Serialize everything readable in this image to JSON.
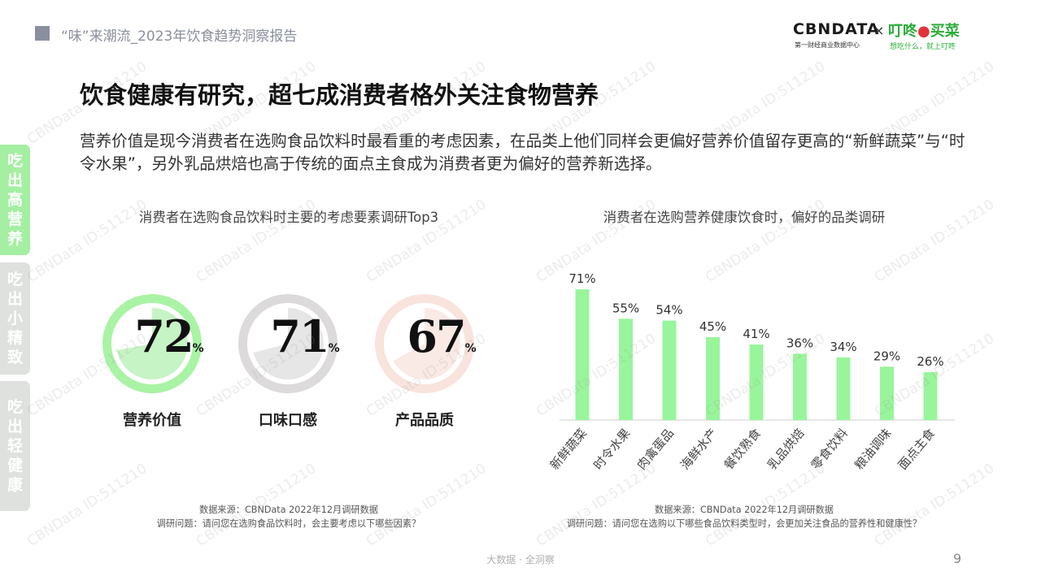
{
  "header": {
    "doc_title": "“味”来潮流_2023年饮食趋势洞察报告",
    "logo_cbndata": "CBNDATA",
    "logo_cbndata_sub": "第一财经商业数据中心",
    "logo_x": "×",
    "logo_dingdong_a": "叮咚",
    "logo_dingdong_b": "买菜",
    "logo_dingdong_sub": "想吃什么，就上叮咚"
  },
  "headline": "饮食健康有研究，超七成消费者格外关注食物营养",
  "paragraph": "营养价值是现今消费者在选购食品饮料时最看重的考虑因素，在品类上他们同样会更偏好营养价值留存更高的“新鲜蔬菜”与“时令水果”，另外乳品烘焙也高于传统的面点主食成为消费者更为偏好的营养新选择。",
  "side_tabs": [
    {
      "chars": [
        "吃",
        "出",
        "高",
        "营",
        "养"
      ],
      "active": true
    },
    {
      "chars": [
        "吃",
        "出",
        "小",
        "精",
        "致"
      ],
      "active": false
    },
    {
      "chars": [
        "吃",
        "出",
        "轻",
        "健",
        "康"
      ],
      "active": false
    }
  ],
  "left_section": {
    "title": "消费者在选购食品饮料时主要的考虑要素调研Top3",
    "gauges": [
      {
        "value": "72",
        "unit": "%",
        "fraction": 0.72,
        "label": "营养价值",
        "ring": "#a9f3a4",
        "fill": "#82e77c",
        "center": "#ffffff"
      },
      {
        "value": "71",
        "unit": "%",
        "fraction": 0.71,
        "label": "口味口感",
        "ring": "#dcdadb",
        "fill": "#c9c7c8",
        "center": "#ffffff"
      },
      {
        "value": "67",
        "unit": "%",
        "fraction": 0.67,
        "label": "产品品质",
        "ring": "#f9e3dd",
        "fill": "#f4d0c6",
        "center": "#ffffff"
      }
    ],
    "source": "数据来源：CBNData 2022年12月调研数据",
    "question": "调研问题：请问您在选购食品饮料时，会主要考虑以下哪些因素？"
  },
  "right_section": {
    "title": "消费者在选购营养健康饮食时，偏好的品类调研",
    "source": "数据来源：CBNData 2022年12月调研数据",
    "question": "调研问题：请问您在选购以下哪些食品饮料类型时，会更加关注食品的营养性和健康性？"
  },
  "chart_data": {
    "type": "bar",
    "title": "",
    "xlabel": "",
    "ylabel": "",
    "categories": [
      "新鲜蔬菜",
      "时令水果",
      "肉禽蛋品",
      "海鲜水产",
      "餐饮熟食",
      "乳品烘焙",
      "零食饮料",
      "粮油调味",
      "面点主食"
    ],
    "values": [
      71,
      55,
      54,
      45,
      41,
      36,
      34,
      29,
      26
    ],
    "labels": [
      "71%",
      "55%",
      "54%",
      "45%",
      "41%",
      "36%",
      "34%",
      "29%",
      "26%"
    ],
    "ylim": [
      0,
      75
    ],
    "bar_color": "#98f59b",
    "grid": false
  },
  "footer": {
    "text": "大数据 · 全洞察",
    "page": "9"
  },
  "watermark": "CBNData ID:511210"
}
